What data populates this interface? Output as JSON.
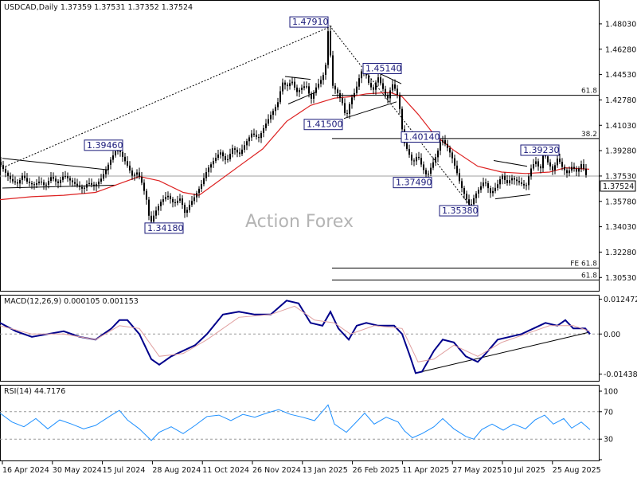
{
  "header": {
    "symbol": "USDCAD,Daily",
    "ohlc": "1.37359 1.37531 1.37352 1.37524"
  },
  "watermark": "Action Forex",
  "colors": {
    "candle": "#000000",
    "ma": "#dd2222",
    "macd_line": "#00008b",
    "macd_signal": "#e0a0a0",
    "rsi": "#1e90ff",
    "label_text": "#1a1a7a",
    "label_border": "#1a1a7a",
    "current_price_line": "#a0a0a0"
  },
  "chart_data": [
    {
      "type": "candlestick",
      "panel": "price",
      "title": "USDCAD,Daily",
      "ohlc_readout": "1.37359 1.37531 1.37352 1.37524",
      "ylim": [
        1.2972,
        1.4962
      ],
      "y_ticks": [
        "1.48030",
        "1.46280",
        "1.44530",
        "1.42780",
        "1.41030",
        "1.39280",
        "1.37530",
        "1.35780",
        "1.34030",
        "1.32280",
        "1.30530"
      ],
      "current_price": "1.37524",
      "x_ticks": [
        "16 Apr 2024",
        "30 May 2024",
        "15 Jul 2024",
        "28 Aug 2024",
        "11 Oct 2024",
        "26 Nov 2024",
        "13 Jan 2025",
        "26 Feb 2025",
        "11 Apr 2025",
        "27 May 2025",
        "10 Jul 2025",
        "25 Aug 2025"
      ],
      "series_path": [
        [
          0,
          1.385
        ],
        [
          8,
          1.378
        ],
        [
          16,
          1.372
        ],
        [
          24,
          1.37
        ],
        [
          30,
          1.376
        ],
        [
          36,
          1.371
        ],
        [
          44,
          1.369
        ],
        [
          52,
          1.372
        ],
        [
          58,
          1.368
        ],
        [
          66,
          1.375
        ],
        [
          74,
          1.37
        ],
        [
          82,
          1.376
        ],
        [
          90,
          1.372
        ],
        [
          98,
          1.369
        ],
        [
          106,
          1.366
        ],
        [
          112,
          1.371
        ],
        [
          120,
          1.368
        ],
        [
          128,
          1.373
        ],
        [
          134,
          1.379
        ],
        [
          140,
          1.386
        ],
        [
          146,
          1.392
        ],
        [
          150,
          1.3946
        ],
        [
          156,
          1.388
        ],
        [
          162,
          1.382
        ],
        [
          168,
          1.375
        ],
        [
          174,
          1.378
        ],
        [
          180,
          1.37
        ],
        [
          186,
          1.358
        ],
        [
          190,
          1.3418
        ],
        [
          196,
          1.35
        ],
        [
          204,
          1.358
        ],
        [
          212,
          1.362
        ],
        [
          220,
          1.356
        ],
        [
          228,
          1.36
        ],
        [
          234,
          1.349
        ],
        [
          240,
          1.356
        ],
        [
          246,
          1.361
        ],
        [
          254,
          1.369
        ],
        [
          262,
          1.38
        ],
        [
          270,
          1.386
        ],
        [
          278,
          1.392
        ],
        [
          286,
          1.385
        ],
        [
          294,
          1.395
        ],
        [
          302,
          1.39
        ],
        [
          310,
          1.398
        ],
        [
          318,
          1.405
        ],
        [
          326,
          1.401
        ],
        [
          334,
          1.41
        ],
        [
          342,
          1.418
        ],
        [
          350,
          1.425
        ],
        [
          356,
          1.44
        ],
        [
          362,
          1.437
        ],
        [
          368,
          1.441
        ],
        [
          374,
          1.433
        ],
        [
          380,
          1.436
        ],
        [
          386,
          1.438
        ],
        [
          392,
          1.428
        ],
        [
          398,
          1.436
        ],
        [
          404,
          1.441
        ],
        [
          410,
          1.448
        ],
        [
          414,
          1.4791
        ],
        [
          419,
          1.438
        ],
        [
          426,
          1.432
        ],
        [
          432,
          1.425
        ],
        [
          436,
          1.415
        ],
        [
          442,
          1.428
        ],
        [
          448,
          1.434
        ],
        [
          452,
          1.442
        ],
        [
          458,
          1.4514
        ],
        [
          464,
          1.44
        ],
        [
          470,
          1.434
        ],
        [
          476,
          1.444
        ],
        [
          482,
          1.436
        ],
        [
          488,
          1.428
        ],
        [
          494,
          1.439
        ],
        [
          500,
          1.433
        ],
        [
          504,
          1.42
        ],
        [
          508,
          1.4
        ],
        [
          514,
          1.392
        ],
        [
          520,
          1.384
        ],
        [
          526,
          1.39
        ],
        [
          532,
          1.381
        ],
        [
          538,
          1.3749
        ],
        [
          544,
          1.383
        ],
        [
          550,
          1.39
        ],
        [
          556,
          1.4014
        ],
        [
          562,
          1.396
        ],
        [
          568,
          1.39
        ],
        [
          574,
          1.38
        ],
        [
          580,
          1.369
        ],
        [
          586,
          1.361
        ],
        [
          592,
          1.3538
        ],
        [
          598,
          1.362
        ],
        [
          604,
          1.367
        ],
        [
          610,
          1.372
        ],
        [
          618,
          1.363
        ],
        [
          626,
          1.369
        ],
        [
          632,
          1.376
        ],
        [
          638,
          1.37
        ],
        [
          644,
          1.374
        ],
        [
          650,
          1.372
        ],
        [
          656,
          1.37
        ],
        [
          662,
          1.368
        ],
        [
          668,
          1.38
        ],
        [
          674,
          1.386
        ],
        [
          680,
          1.379
        ],
        [
          684,
          1.3923
        ],
        [
          690,
          1.384
        ],
        [
          696,
          1.379
        ],
        [
          702,
          1.388
        ],
        [
          708,
          1.381
        ],
        [
          714,
          1.377
        ],
        [
          720,
          1.382
        ],
        [
          726,
          1.378
        ],
        [
          732,
          1.384
        ],
        [
          738,
          1.3752
        ]
      ],
      "moving_average_path": [
        [
          0,
          1.359
        ],
        [
          40,
          1.361
        ],
        [
          80,
          1.362
        ],
        [
          120,
          1.364
        ],
        [
          150,
          1.37
        ],
        [
          175,
          1.375
        ],
        [
          200,
          1.372
        ],
        [
          230,
          1.364
        ],
        [
          250,
          1.362
        ],
        [
          270,
          1.37
        ],
        [
          300,
          1.382
        ],
        [
          330,
          1.394
        ],
        [
          360,
          1.413
        ],
        [
          390,
          1.424
        ],
        [
          420,
          1.429
        ],
        [
          440,
          1.43
        ],
        [
          460,
          1.432
        ],
        [
          490,
          1.433
        ],
        [
          505,
          1.43
        ],
        [
          525,
          1.418
        ],
        [
          545,
          1.404
        ],
        [
          570,
          1.393
        ],
        [
          600,
          1.382
        ],
        [
          630,
          1.378
        ],
        [
          660,
          1.377
        ],
        [
          690,
          1.378
        ],
        [
          710,
          1.381
        ],
        [
          740,
          1.38
        ]
      ],
      "price_labels": [
        {
          "text": "1.47910",
          "x": 414,
          "y": 1.4791
        },
        {
          "text": "1.45140",
          "x": 458,
          "y": 1.4514
        },
        {
          "text": "1.41500",
          "x": 436,
          "y": 1.415
        },
        {
          "text": "1.39460",
          "x": 150,
          "y": 1.3946
        },
        {
          "text": "1.40140",
          "x": 556,
          "y": 1.4014
        },
        {
          "text": "1.37490",
          "x": 538,
          "y": 1.3749
        },
        {
          "text": "1.35380",
          "x": 592,
          "y": 1.3538
        },
        {
          "text": "1.34180",
          "x": 190,
          "y": 1.3418
        },
        {
          "text": "1.39230",
          "x": 684,
          "y": 1.3923
        }
      ],
      "fib_levels": [
        {
          "label": "61.8",
          "value": 1.431
        },
        {
          "label": "38.2",
          "value": 1.4012
        },
        {
          "label": "FE 61.8",
          "value": 1.3118
        },
        {
          "label": "61.8",
          "value": 1.3035
        }
      ]
    },
    {
      "type": "line",
      "panel": "macd",
      "title": "MACD(12,26,9) 0.000105 0.001153",
      "y_ticks": [
        "0.012472",
        "0.00",
        "-0.014389"
      ],
      "ylim": [
        -0.0165,
        0.0135
      ],
      "series": [
        {
          "name": "MACD line",
          "values": [
            [
              0,
              0.004
            ],
            [
              20,
              0.001
            ],
            [
              40,
              -0.001
            ],
            [
              60,
              0.0
            ],
            [
              80,
              0.001
            ],
            [
              100,
              -0.001
            ],
            [
              120,
              -0.002
            ],
            [
              140,
              0.002
            ],
            [
              150,
              0.005
            ],
            [
              160,
              0.005
            ],
            [
              175,
              0.0
            ],
            [
              190,
              -0.009
            ],
            [
              200,
              -0.011
            ],
            [
              215,
              -0.008
            ],
            [
              230,
              -0.006
            ],
            [
              245,
              -0.004
            ],
            [
              260,
              0.0
            ],
            [
              280,
              0.007
            ],
            [
              300,
              0.008
            ],
            [
              320,
              0.007
            ],
            [
              340,
              0.007
            ],
            [
              360,
              0.012
            ],
            [
              375,
              0.011
            ],
            [
              390,
              0.004
            ],
            [
              405,
              0.003
            ],
            [
              415,
              0.008
            ],
            [
              425,
              0.002
            ],
            [
              438,
              -0.002
            ],
            [
              448,
              0.003
            ],
            [
              460,
              0.004
            ],
            [
              475,
              0.003
            ],
            [
              495,
              0.003
            ],
            [
              505,
              0.0
            ],
            [
              515,
              -0.008
            ],
            [
              522,
              -0.014
            ],
            [
              530,
              -0.0135
            ],
            [
              545,
              -0.006
            ],
            [
              556,
              -0.002
            ],
            [
              570,
              -0.003
            ],
            [
              585,
              -0.008
            ],
            [
              600,
              -0.01
            ],
            [
              610,
              -0.007
            ],
            [
              625,
              -0.002
            ],
            [
              640,
              -0.001
            ],
            [
              655,
              0.0
            ],
            [
              670,
              0.002
            ],
            [
              685,
              0.004
            ],
            [
              700,
              0.003
            ],
            [
              710,
              0.005
            ],
            [
              720,
              0.002
            ],
            [
              735,
              0.002
            ],
            [
              741,
              0.0
            ]
          ]
        },
        {
          "name": "Signal",
          "values": [
            [
              0,
              0.003
            ],
            [
              40,
              0.0
            ],
            [
              80,
              0.0
            ],
            [
              120,
              -0.002
            ],
            [
              150,
              0.003
            ],
            [
              175,
              0.002
            ],
            [
              200,
              -0.008
            ],
            [
              230,
              -0.007
            ],
            [
              260,
              -0.002
            ],
            [
              300,
              0.006
            ],
            [
              340,
              0.007
            ],
            [
              370,
              0.01
            ],
            [
              395,
              0.005
            ],
            [
              420,
              0.004
            ],
            [
              440,
              0.0
            ],
            [
              470,
              0.003
            ],
            [
              505,
              0.002
            ],
            [
              525,
              -0.01
            ],
            [
              545,
              -0.009
            ],
            [
              570,
              -0.004
            ],
            [
              600,
              -0.008
            ],
            [
              630,
              -0.003
            ],
            [
              660,
              0.0
            ],
            [
              690,
              0.003
            ],
            [
              720,
              0.003
            ],
            [
              741,
              0.001
            ]
          ]
        }
      ]
    },
    {
      "type": "line",
      "panel": "rsi",
      "title": "RSI(14) 44.7176",
      "y_ticks": [
        "100",
        "70",
        "30",
        "0"
      ],
      "ylim": [
        0,
        100
      ],
      "series": [
        {
          "name": "RSI",
          "values": [
            [
              0,
              68
            ],
            [
              15,
              55
            ],
            [
              30,
              48
            ],
            [
              45,
              60
            ],
            [
              60,
              45
            ],
            [
              75,
              58
            ],
            [
              90,
              52
            ],
            [
              105,
              45
            ],
            [
              120,
              50
            ],
            [
              140,
              65
            ],
            [
              150,
              72
            ],
            [
              160,
              58
            ],
            [
              175,
              45
            ],
            [
              190,
              28
            ],
            [
              200,
              40
            ],
            [
              215,
              48
            ],
            [
              230,
              38
            ],
            [
              245,
              50
            ],
            [
              260,
              63
            ],
            [
              275,
              65
            ],
            [
              290,
              57
            ],
            [
              305,
              66
            ],
            [
              320,
              62
            ],
            [
              335,
              68
            ],
            [
              350,
              73
            ],
            [
              365,
              66
            ],
            [
              380,
              62
            ],
            [
              395,
              57
            ],
            [
              412,
              80
            ],
            [
              420,
              52
            ],
            [
              435,
              40
            ],
            [
              450,
              58
            ],
            [
              458,
              68
            ],
            [
              470,
              52
            ],
            [
              485,
              62
            ],
            [
              500,
              55
            ],
            [
              508,
              42
            ],
            [
              518,
              32
            ],
            [
              530,
              38
            ],
            [
              545,
              48
            ],
            [
              556,
              60
            ],
            [
              570,
              45
            ],
            [
              585,
              34
            ],
            [
              595,
              30
            ],
            [
              605,
              44
            ],
            [
              618,
              52
            ],
            [
              632,
              43
            ],
            [
              645,
              52
            ],
            [
              660,
              45
            ],
            [
              672,
              58
            ],
            [
              684,
              65
            ],
            [
              695,
              52
            ],
            [
              708,
              60
            ],
            [
              718,
              46
            ],
            [
              730,
              55
            ],
            [
              741,
              44
            ]
          ]
        }
      ]
    }
  ]
}
